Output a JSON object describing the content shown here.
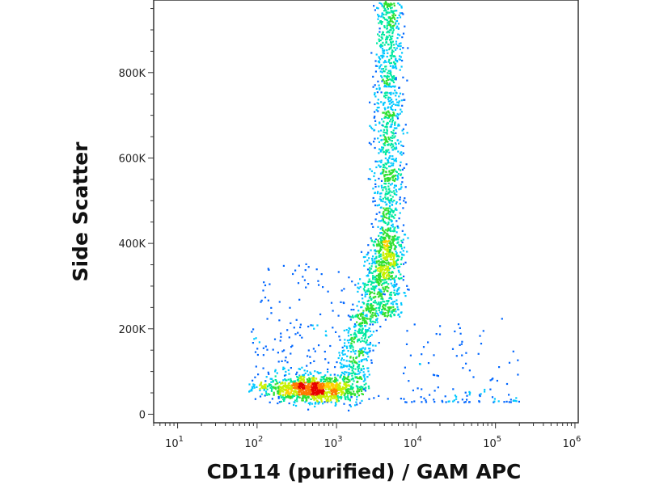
{
  "chart_data": {
    "type": "scatter",
    "title": "",
    "xlabel": "CD114 (purified) / GAM APC",
    "ylabel": "Side Scatter",
    "x_scale": "log",
    "xlim": [
      5,
      1100000
    ],
    "ylim": [
      -20000,
      970000
    ],
    "x_ticks": [
      {
        "value": 10,
        "base": "10",
        "exp": "1"
      },
      {
        "value": 100,
        "base": "10",
        "exp": "2"
      },
      {
        "value": 1000,
        "base": "10",
        "exp": "3"
      },
      {
        "value": 10000,
        "base": "10",
        "exp": "4"
      },
      {
        "value": 100000,
        "base": "10",
        "exp": "5"
      },
      {
        "value": 1000000,
        "base": "10",
        "exp": "6"
      }
    ],
    "y_ticks": [
      {
        "value": 0,
        "label": "0"
      },
      {
        "value": 200000,
        "label": "200K"
      },
      {
        "value": 400000,
        "label": "400K"
      },
      {
        "value": 600000,
        "label": "600K"
      },
      {
        "value": 800000,
        "label": "800K"
      }
    ],
    "grid": false,
    "legend": "none",
    "color_scale": "density: blue → cyan → green → yellow → orange → red",
    "colors": [
      "#0000d8",
      "#0066ff",
      "#00c8ff",
      "#00e8a0",
      "#30e030",
      "#c8f000",
      "#ffd000",
      "#ff7a00",
      "#e80000"
    ],
    "populations": [
      {
        "name_note": "low-SSC cluster",
        "x_center": 500,
        "y_center": 60000,
        "points": 900
      },
      {
        "name_note": "high-SSC band",
        "x_center": 4500,
        "y_center": 600000,
        "points": 1200
      },
      {
        "name_note": "connecting arm",
        "x_range": [
          1200,
          5000
        ],
        "y_range": [
          80000,
          420000
        ],
        "points": 700
      },
      {
        "name_note": "left scatter",
        "x_range": [
          60,
          2000
        ],
        "y_range": [
          60000,
          350000
        ],
        "points": 250
      }
    ]
  }
}
